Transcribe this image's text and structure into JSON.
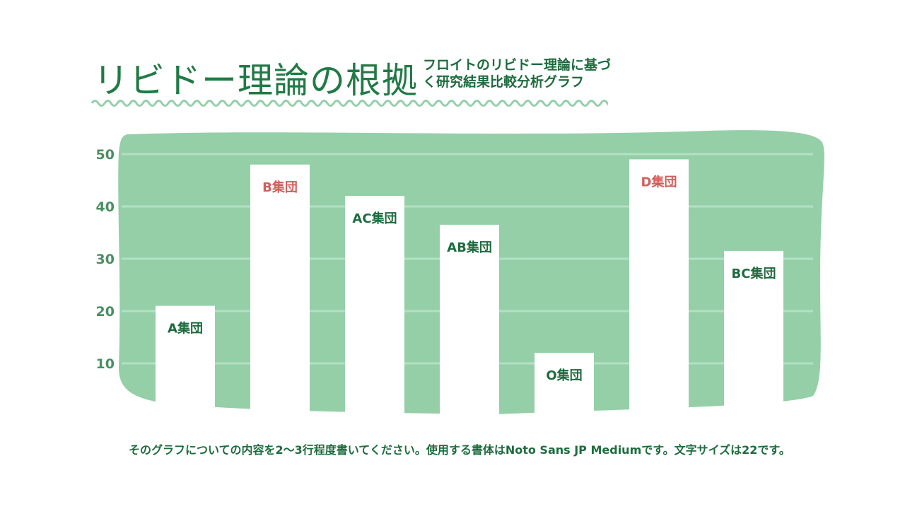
{
  "title": "リビドー理論の根拠",
  "subtitle": "フロイトのリビドー理論に基づく研究結果比較分析グラフ",
  "caption": "そのグラフについての内容を2〜3行程度書いてください。使用する書体はNoto Sans JP Mediumです。文字サイズは22です。",
  "colors": {
    "background_blob": "#94cfa8",
    "bar": "#ffffff",
    "label_green": "#1e6b3e",
    "label_red": "#d0605e",
    "tick": "#4a8f62",
    "wave": "#94cfa8"
  },
  "chart_data": {
    "type": "bar",
    "categories": [
      "A集団",
      "B集団",
      "AC集団",
      "AB集団",
      "O集団",
      "D集団",
      "BC集団"
    ],
    "values": [
      21,
      48,
      42,
      36.5,
      12,
      49,
      31.5
    ],
    "label_colors": [
      "green",
      "red",
      "green",
      "green",
      "green",
      "red",
      "green"
    ],
    "yticks": [
      10,
      20,
      30,
      40,
      50
    ],
    "ylim": [
      0,
      50
    ],
    "grid": true,
    "legend": "none"
  }
}
